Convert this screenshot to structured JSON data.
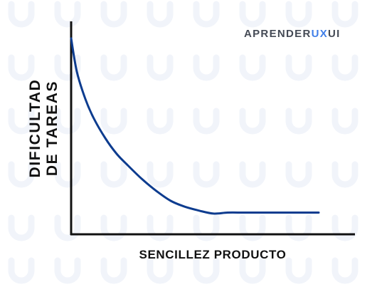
{
  "brand": {
    "prefix": "APRENDER",
    "highlight": "UX",
    "suffix": "UI",
    "highlight_color": "#3f7ee8"
  },
  "chart_data": {
    "type": "line",
    "xlabel": "SENCILLEZ PRODUCTO",
    "ylabel_line1": "DIFICULTAD",
    "ylabel_line2": "DE TAREAS",
    "xlim": [
      0,
      1
    ],
    "ylim": [
      0,
      1
    ],
    "grid": false,
    "series": [
      {
        "color": "#0d3c8f",
        "x": [
          0,
          0.02,
          0.05,
          0.08,
          0.12,
          0.16,
          0.2,
          0.25,
          0.3,
          0.35,
          0.4,
          0.45,
          0.5,
          0.55,
          0.6,
          0.63,
          0.7,
          0.8,
          0.87
        ],
        "y": [
          0.95,
          0.78,
          0.64,
          0.54,
          0.44,
          0.36,
          0.3,
          0.23,
          0.17,
          0.12,
          0.09,
          0.07,
          0.055,
          0.06,
          0.06,
          0.06,
          0.06,
          0.06,
          0.06
        ]
      }
    ]
  }
}
